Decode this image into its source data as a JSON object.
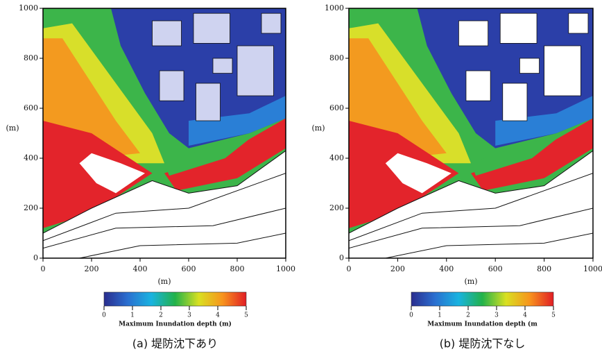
{
  "chart_data": [
    {
      "type": "heatmap",
      "xlim": [
        0,
        1000
      ],
      "ylim": [
        0,
        1000
      ],
      "xticks": [
        0,
        200,
        400,
        600,
        800,
        1000
      ],
      "yticks": [
        0,
        200,
        400,
        600,
        800,
        1000
      ],
      "xlabel": "(m)",
      "ylabel": "(m)",
      "colorbar": {
        "label": "Maximum Inundation depth (m)",
        "lim": [
          0,
          5
        ],
        "ticks": [
          0,
          1,
          2,
          3,
          4,
          5
        ],
        "colormap": [
          "#2a2d8e",
          "#2a6fd0",
          "#19b3e0",
          "#22b24a",
          "#d9e021",
          "#f7941d",
          "#e11d25"
        ]
      },
      "caption": "(a) 堤防沈下あり"
    },
    {
      "type": "heatmap",
      "xlim": [
        0,
        1000
      ],
      "ylim": [
        0,
        1000
      ],
      "xticks": [
        0,
        200,
        400,
        600,
        800,
        1000
      ],
      "yticks": [
        0,
        200,
        400,
        600,
        800,
        1000
      ],
      "xlabel": "(m)",
      "ylabel": "(m)",
      "colorbar": {
        "label": "Maximum Inundation depth (m",
        "lim": [
          0,
          5
        ],
        "ticks": [
          0,
          1,
          2,
          3,
          4,
          5
        ],
        "colormap": [
          "#2a2d8e",
          "#2a6fd0",
          "#19b3e0",
          "#22b24a",
          "#d9e021",
          "#f7941d",
          "#e11d25"
        ]
      },
      "caption": "(b) 堤防沈下なし"
    }
  ]
}
